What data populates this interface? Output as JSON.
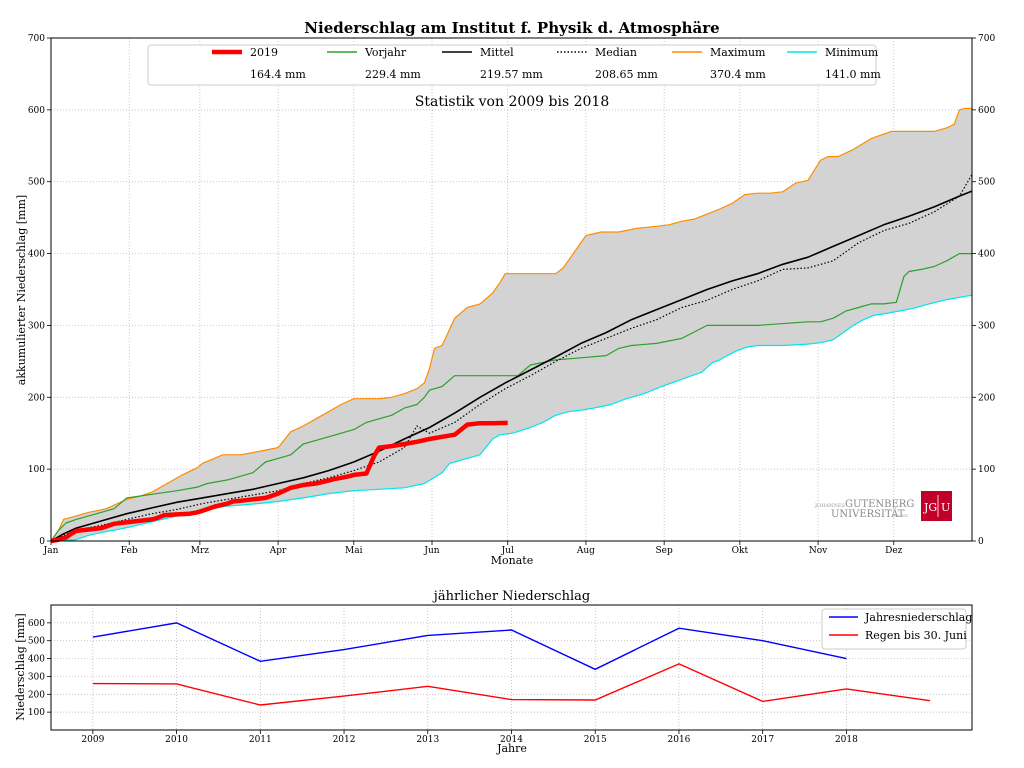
{
  "chart_data": [
    {
      "type": "line",
      "title": "Niederschlag am Institut f. Physik d. Atmosphäre",
      "subtitle": "Statistik von 2009 bis 2018",
      "xlabel": "Monate",
      "ylabel": "akkumulierter Niederschlag [mm]",
      "x_unit": "day of year",
      "xlim": [
        0,
        365
      ],
      "ylim": [
        0,
        700
      ],
      "yticks": [
        0,
        100,
        200,
        300,
        400,
        500,
        600,
        700
      ],
      "month_ticks": [
        {
          "label": "Jan",
          "day": 0
        },
        {
          "label": "Feb",
          "day": 31
        },
        {
          "label": "Mrz",
          "day": 59
        },
        {
          "label": "Apr",
          "day": 90
        },
        {
          "label": "Mai",
          "day": 120
        },
        {
          "label": "Jun",
          "day": 151
        },
        {
          "label": "Jul",
          "day": 181
        },
        {
          "label": "Aug",
          "day": 212
        },
        {
          "label": "Sep",
          "day": 243
        },
        {
          "label": "Okt",
          "day": 273
        },
        {
          "label": "Nov",
          "day": 304
        },
        {
          "label": "Dez",
          "day": 334
        }
      ],
      "grid": true,
      "legend_position": "top",
      "legend": [
        {
          "name": "2019",
          "value": "164.4 mm",
          "color": "#ff0000",
          "style": "thick"
        },
        {
          "name": "Vorjahr",
          "value": "229.4 mm",
          "color": "#2ca02c",
          "style": "solid"
        },
        {
          "name": "Mittel",
          "value": "219.57 mm",
          "color": "#000000",
          "style": "solid"
        },
        {
          "name": "Median",
          "value": "208.65 mm",
          "color": "#000000",
          "style": "dotted"
        },
        {
          "name": "Maximum",
          "value": "370.4 mm",
          "color": "#ff8c00",
          "style": "solid"
        },
        {
          "name": "Minimum",
          "value": "141.0 mm",
          "color": "#00e5ee",
          "style": "solid"
        }
      ],
      "series": [
        {
          "name": "Maximum",
          "color": "#ff8c00",
          "x": [
            0,
            3,
            5,
            10,
            15,
            22,
            30,
            35,
            40,
            45,
            52,
            58,
            60,
            68,
            75,
            80,
            90,
            95,
            100,
            105,
            110,
            115,
            120,
            125,
            130,
            135,
            140,
            145,
            148,
            150,
            152,
            155,
            160,
            165,
            170,
            175,
            178,
            180,
            185,
            190,
            195,
            200,
            203,
            206,
            208,
            212,
            218,
            225,
            232,
            240,
            245,
            250,
            255,
            260,
            265,
            270,
            275,
            280,
            285,
            290,
            295,
            300,
            305,
            308,
            312,
            318,
            325,
            333,
            340,
            345,
            350,
            355,
            358,
            360,
            362,
            365
          ],
          "y": [
            0,
            15,
            30,
            35,
            40,
            45,
            58,
            62,
            68,
            78,
            92,
            102,
            108,
            120,
            120,
            123,
            130,
            152,
            160,
            170,
            180,
            190,
            198,
            198,
            198,
            200,
            205,
            212,
            220,
            240,
            268,
            272,
            310,
            325,
            330,
            345,
            360,
            372,
            372,
            372,
            372,
            372,
            380,
            395,
            405,
            425,
            430,
            430,
            435,
            438,
            440,
            445,
            448,
            455,
            462,
            470,
            482,
            484,
            484,
            486,
            498,
            502,
            530,
            535,
            535,
            545,
            560,
            570,
            570,
            570,
            570,
            575,
            580,
            600,
            602,
            602
          ]
        },
        {
          "name": "Minimum",
          "color": "#00e5ee",
          "x": [
            0,
            10,
            15,
            20,
            25,
            32,
            38,
            44,
            50,
            55,
            62,
            68,
            75,
            82,
            90,
            100,
            110,
            120,
            130,
            140,
            148,
            155,
            158,
            162,
            170,
            175,
            178,
            183,
            190,
            195,
            200,
            205,
            210,
            215,
            222,
            228,
            235,
            242,
            250,
            258,
            262,
            265,
            268,
            272,
            276,
            280,
            290,
            300,
            305,
            310,
            318,
            322,
            326,
            330,
            336,
            342,
            348,
            355,
            365
          ],
          "y": [
            0,
            2,
            8,
            12,
            15,
            20,
            25,
            30,
            35,
            40,
            45,
            48,
            50,
            52,
            55,
            60,
            66,
            70,
            72,
            74,
            80,
            95,
            108,
            112,
            120,
            142,
            148,
            150,
            158,
            165,
            175,
            180,
            182,
            185,
            190,
            198,
            205,
            215,
            225,
            235,
            248,
            252,
            258,
            265,
            270,
            272,
            272,
            274,
            276,
            280,
            300,
            308,
            314,
            316,
            320,
            324,
            330,
            336,
            342
          ]
        },
        {
          "name": "Mittel",
          "color": "#000000",
          "x": [
            0,
            5,
            10,
            20,
            30,
            40,
            50,
            60,
            70,
            80,
            90,
            100,
            110,
            120,
            130,
            140,
            150,
            160,
            170,
            180,
            190,
            200,
            210,
            220,
            230,
            240,
            250,
            260,
            270,
            280,
            290,
            300,
            310,
            320,
            330,
            340,
            350,
            360,
            365
          ],
          "y": [
            0,
            10,
            18,
            28,
            38,
            46,
            54,
            60,
            66,
            72,
            80,
            88,
            98,
            110,
            125,
            142,
            158,
            178,
            200,
            220,
            238,
            256,
            275,
            290,
            308,
            322,
            336,
            350,
            362,
            372,
            385,
            395,
            410,
            425,
            440,
            452,
            465,
            480,
            487
          ]
        },
        {
          "name": "Median",
          "color": "#000000",
          "x": [
            0,
            5,
            10,
            20,
            30,
            40,
            50,
            60,
            70,
            80,
            90,
            100,
            110,
            120,
            130,
            140,
            145,
            150,
            160,
            170,
            180,
            190,
            200,
            210,
            220,
            230,
            240,
            250,
            260,
            270,
            280,
            290,
            300,
            310,
            320,
            330,
            340,
            350,
            360,
            365
          ],
          "y": [
            0,
            8,
            15,
            22,
            30,
            38,
            44,
            52,
            58,
            64,
            70,
            80,
            88,
            98,
            110,
            130,
            160,
            150,
            165,
            190,
            212,
            230,
            250,
            268,
            282,
            296,
            308,
            325,
            335,
            350,
            362,
            378,
            380,
            390,
            415,
            432,
            442,
            458,
            480,
            510
          ]
        },
        {
          "name": "Vorjahr",
          "color": "#2ca02c",
          "x": [
            0,
            3,
            6,
            10,
            20,
            25,
            30,
            40,
            50,
            58,
            62,
            70,
            80,
            85,
            90,
            95,
            100,
            105,
            110,
            115,
            120,
            125,
            130,
            135,
            140,
            145,
            148,
            150,
            155,
            160,
            165,
            170,
            175,
            180,
            185,
            190,
            200,
            210,
            220,
            225,
            230,
            240,
            250,
            260,
            270,
            280,
            300,
            305,
            310,
            315,
            320,
            325,
            330,
            335,
            338,
            340,
            345,
            350,
            355,
            360,
            365
          ],
          "y": [
            0,
            15,
            25,
            30,
            40,
            45,
            60,
            65,
            70,
            75,
            80,
            85,
            95,
            110,
            115,
            120,
            135,
            140,
            145,
            150,
            155,
            165,
            170,
            175,
            185,
            190,
            200,
            210,
            215,
            230,
            230,
            230,
            230,
            230,
            230,
            245,
            252,
            255,
            258,
            268,
            272,
            275,
            282,
            300,
            300,
            300,
            305,
            305,
            310,
            320,
            325,
            330,
            330,
            332,
            368,
            375,
            378,
            382,
            390,
            400,
            400
          ]
        },
        {
          "name": "2019",
          "color": "#ff0000",
          "x": [
            0,
            3,
            6,
            8,
            10,
            15,
            20,
            25,
            30,
            35,
            40,
            42,
            45,
            50,
            55,
            58,
            60,
            65,
            70,
            72,
            75,
            80,
            85,
            90,
            95,
            100,
            105,
            110,
            112,
            115,
            118,
            120,
            125,
            128,
            130,
            135,
            140,
            145,
            150,
            155,
            160,
            165,
            170,
            175,
            181
          ],
          "y": [
            0,
            2,
            5,
            10,
            14,
            16,
            18,
            24,
            26,
            28,
            30,
            32,
            36,
            37,
            38,
            40,
            42,
            48,
            52,
            55,
            56,
            58,
            60,
            66,
            74,
            78,
            80,
            84,
            86,
            88,
            90,
            92,
            94,
            118,
            130,
            132,
            135,
            138,
            142,
            145,
            148,
            162,
            164,
            164,
            164.4
          ]
        }
      ]
    },
    {
      "type": "line",
      "title": "jährlicher Niederschlag",
      "xlabel": "Jahre",
      "ylabel": "Niederschlag [mm]",
      "xlim": [
        2008.5,
        2019.5
      ],
      "ylim": [
        0,
        700
      ],
      "yticks": [
        100,
        200,
        300,
        400,
        500,
        600
      ],
      "categories": [
        "2009",
        "2010",
        "2011",
        "2012",
        "2013",
        "2014",
        "2015",
        "2016",
        "2017",
        "2018"
      ],
      "grid": true,
      "legend_position": "top-right",
      "series": [
        {
          "name": "Jahresniederschlag",
          "color": "#0000ff",
          "x": [
            2009,
            2010,
            2011,
            2012,
            2013,
            2014,
            2015,
            2016,
            2017,
            2018
          ],
          "y": [
            520,
            600,
            385,
            450,
            530,
            560,
            340,
            570,
            500,
            400
          ]
        },
        {
          "name": "Regen bis 30. Juni",
          "color": "#ff0000",
          "x": [
            2009,
            2010,
            2011,
            2012,
            2013,
            2014,
            2015,
            2016,
            2017,
            2018,
            2019
          ],
          "y": [
            260,
            258,
            140,
            190,
            245,
            170,
            168,
            370,
            160,
            230,
            164
          ]
        }
      ]
    }
  ],
  "logo": {
    "university_small": "JOHANNES",
    "university_line1": "GUTENBERG",
    "university_line2": "UNIVERSITÄT",
    "university_city": "MAINZ",
    "badge_left": "JG",
    "badge_right": "U",
    "badge_color": "#c1002a"
  }
}
